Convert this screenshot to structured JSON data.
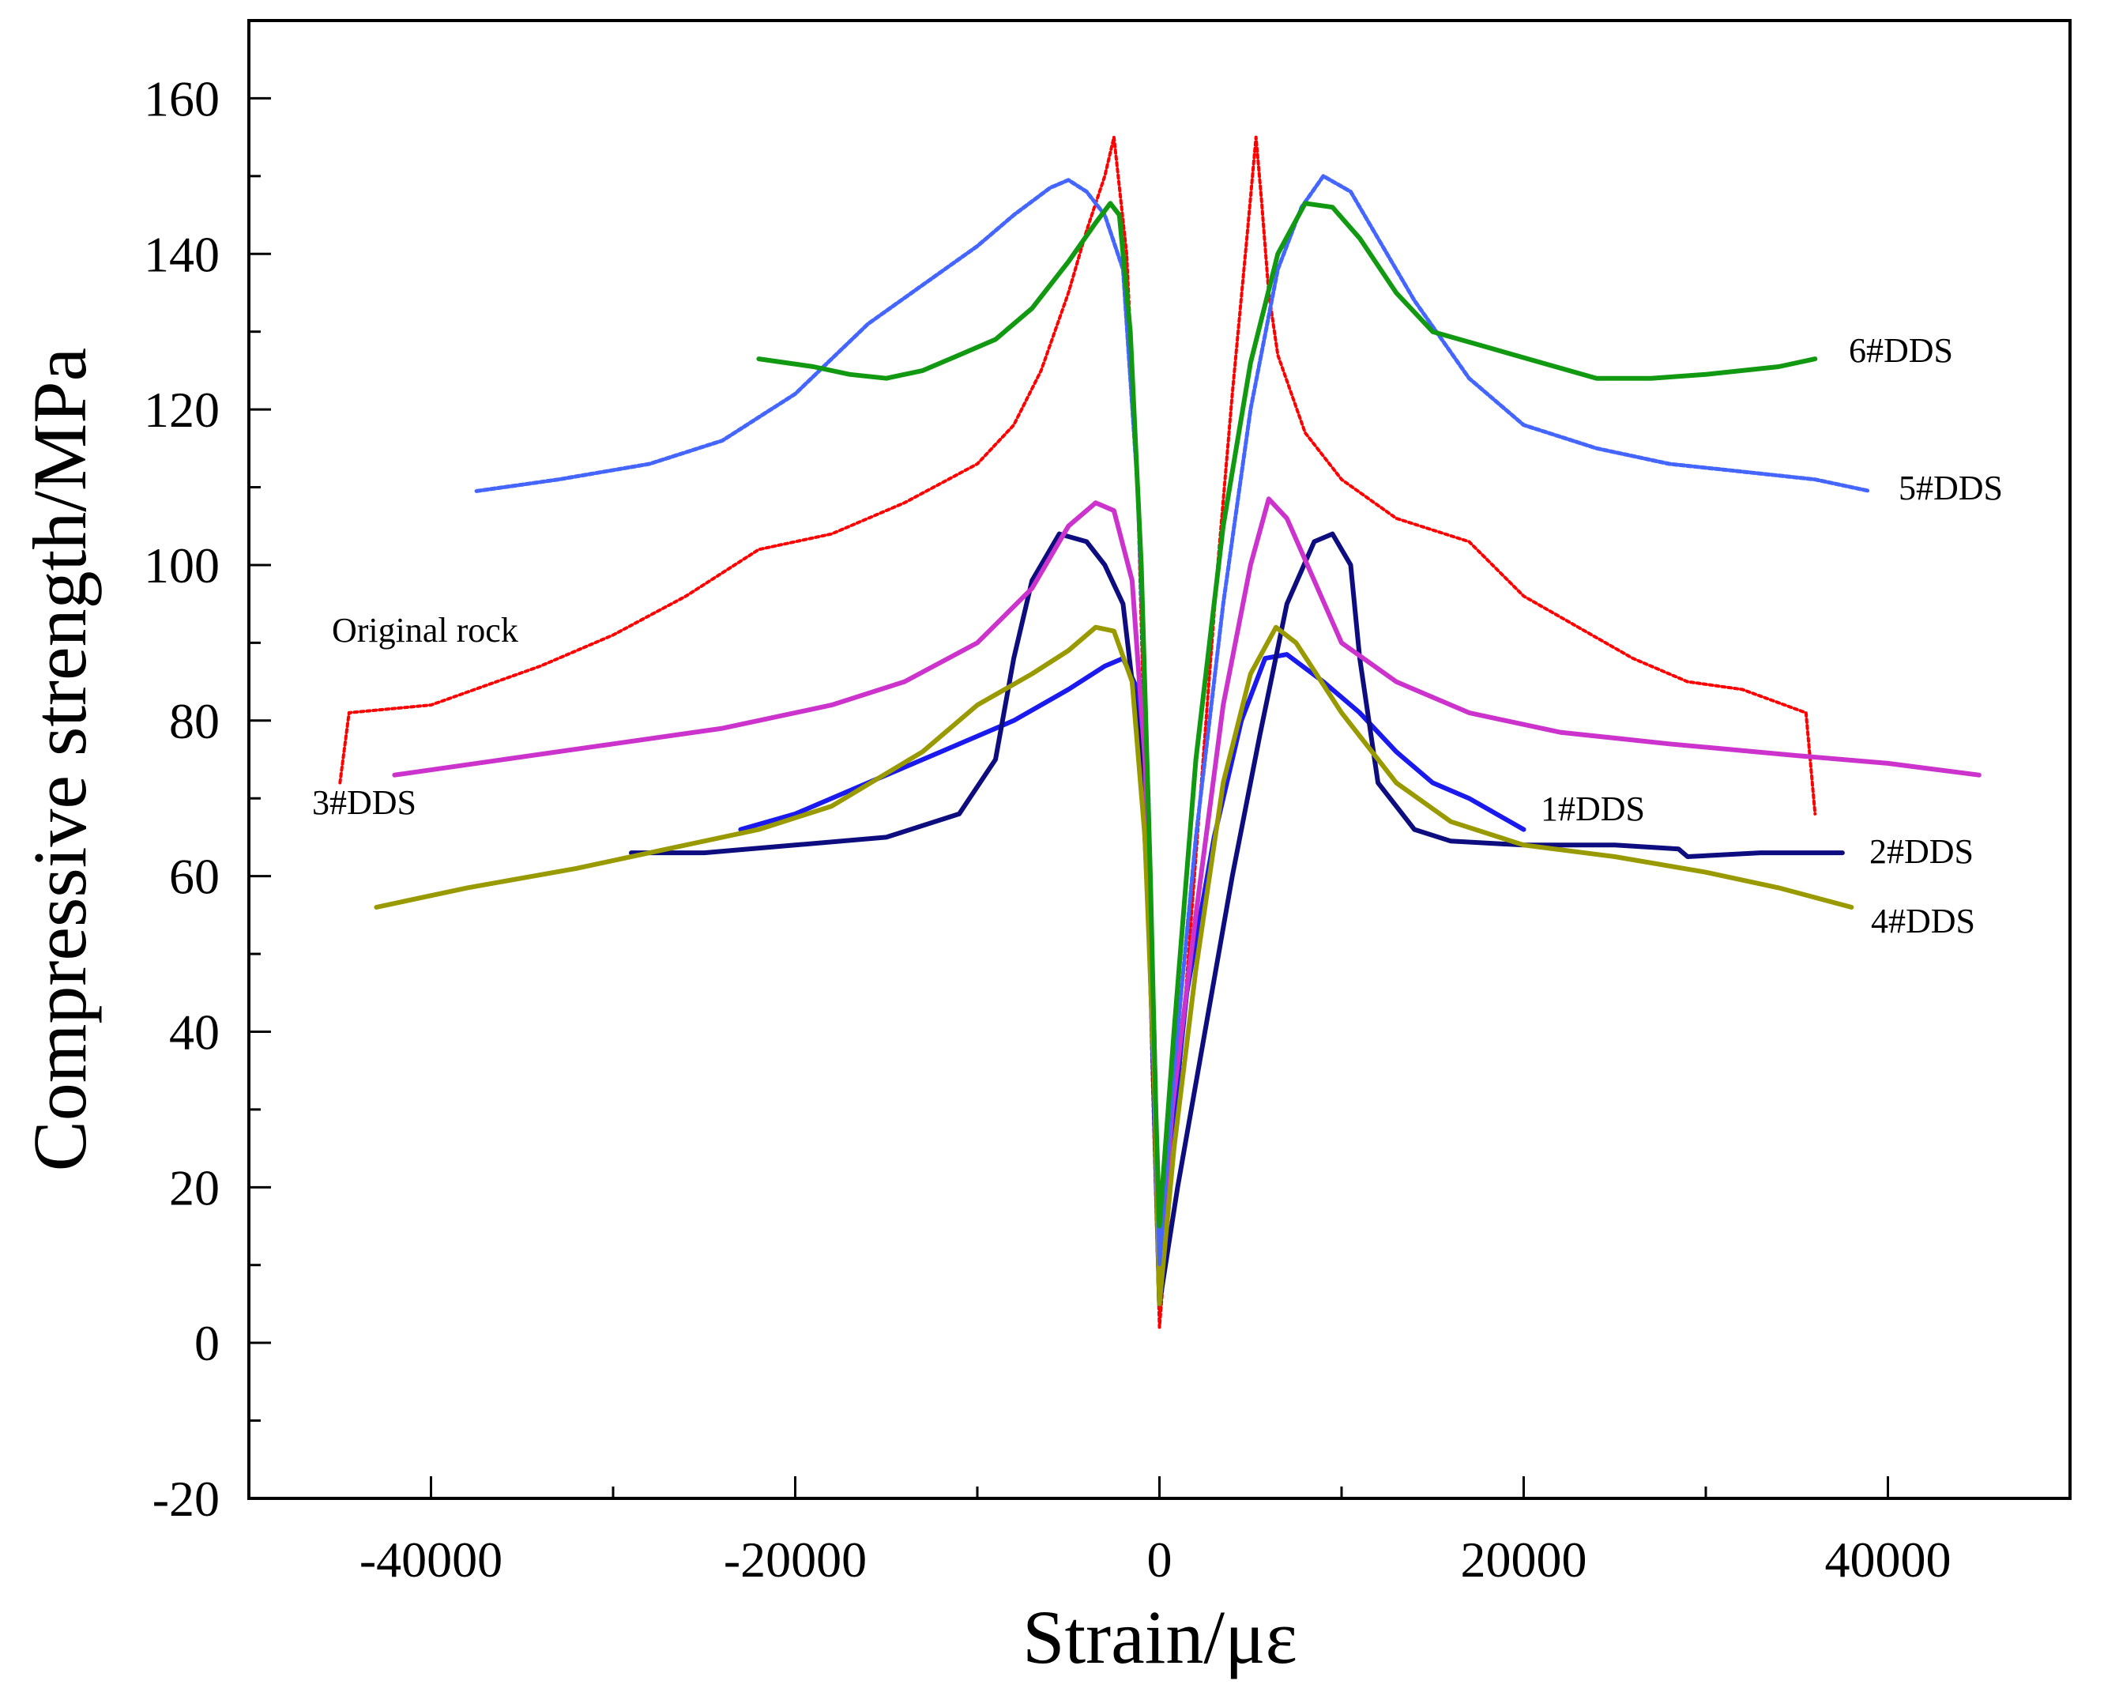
{
  "chart_data": {
    "type": "line",
    "title": "",
    "xlabel": "Strain/με",
    "ylabel": "Compressive strength/MPa",
    "xlim": [
      -50000,
      50000
    ],
    "ylim": [
      -20,
      170
    ],
    "xticks": [
      -40000,
      -20000,
      0,
      20000,
      40000
    ],
    "xtick_labels": [
      "-40000",
      "-20000",
      "0",
      "20000",
      "40000"
    ],
    "yticks": [
      -20,
      0,
      20,
      40,
      60,
      80,
      100,
      120,
      140,
      160
    ],
    "ytick_labels": [
      "-20",
      "0",
      "20",
      "40",
      "60",
      "80",
      "100",
      "120",
      "140",
      "160"
    ],
    "grid": false,
    "series": [
      {
        "name": "Original rock",
        "label": "Original rock",
        "color": "#ff0000",
        "points": [
          [
            -45000,
            72
          ],
          [
            -44500,
            81
          ],
          [
            -40000,
            82
          ],
          [
            -34000,
            87
          ],
          [
            -30000,
            91
          ],
          [
            -26000,
            96
          ],
          [
            -22000,
            102
          ],
          [
            -18000,
            104
          ],
          [
            -14000,
            108
          ],
          [
            -10000,
            113
          ],
          [
            -8000,
            118
          ],
          [
            -6500,
            125
          ],
          [
            -5000,
            135
          ],
          [
            -4000,
            143
          ],
          [
            -3000,
            150
          ],
          [
            -2500,
            155
          ],
          [
            -1800,
            140
          ],
          [
            -1200,
            110
          ],
          [
            -800,
            75
          ],
          [
            -400,
            35
          ],
          [
            0,
            2
          ],
          [
            800,
            25
          ],
          [
            1600,
            50
          ],
          [
            2400,
            75
          ],
          [
            3200,
            100
          ],
          [
            4000,
            122
          ],
          [
            4800,
            142
          ],
          [
            5300,
            155
          ],
          [
            5600,
            147
          ],
          [
            6000,
            135
          ],
          [
            6500,
            127
          ],
          [
            8000,
            117
          ],
          [
            10000,
            111
          ],
          [
            13000,
            106
          ],
          [
            17000,
            103
          ],
          [
            20000,
            96
          ],
          [
            23000,
            92
          ],
          [
            26000,
            88
          ],
          [
            29000,
            85
          ],
          [
            32000,
            84
          ],
          [
            35500,
            81
          ],
          [
            36000,
            68
          ]
        ]
      },
      {
        "name": "1#DDS",
        "label": "1#DDS",
        "color": "#1a1aee",
        "points": [
          [
            -23000,
            66
          ],
          [
            -20000,
            68
          ],
          [
            -16000,
            72
          ],
          [
            -12000,
            76
          ],
          [
            -8000,
            80
          ],
          [
            -5000,
            84
          ],
          [
            -3000,
            87
          ],
          [
            -2000,
            88
          ],
          [
            -1200,
            84
          ],
          [
            -800,
            70
          ],
          [
            -400,
            40
          ],
          [
            0,
            5
          ],
          [
            600,
            25
          ],
          [
            1500,
            45
          ],
          [
            3000,
            65
          ],
          [
            4500,
            80
          ],
          [
            5800,
            88
          ],
          [
            7000,
            88.5
          ],
          [
            9000,
            85
          ],
          [
            11000,
            81
          ],
          [
            13000,
            76
          ],
          [
            15000,
            72
          ],
          [
            17000,
            70
          ],
          [
            20000,
            66
          ]
        ]
      },
      {
        "name": "2#DDS",
        "label": "2#DDS",
        "color": "#0d0d80",
        "points": [
          [
            -29000,
            63
          ],
          [
            -25000,
            63
          ],
          [
            -20000,
            64
          ],
          [
            -15000,
            65
          ],
          [
            -11000,
            68
          ],
          [
            -9000,
            75
          ],
          [
            -8000,
            88
          ],
          [
            -7000,
            98
          ],
          [
            -5500,
            104
          ],
          [
            -4000,
            103
          ],
          [
            -3000,
            100
          ],
          [
            -2000,
            95
          ],
          [
            -1000,
            75
          ],
          [
            -400,
            45
          ],
          [
            0,
            5
          ],
          [
            1000,
            20
          ],
          [
            2500,
            40
          ],
          [
            4000,
            60
          ],
          [
            5500,
            78
          ],
          [
            7000,
            95
          ],
          [
            8500,
            103
          ],
          [
            9500,
            104
          ],
          [
            10500,
            100
          ],
          [
            11000,
            88
          ],
          [
            12000,
            72
          ],
          [
            14000,
            66
          ],
          [
            16000,
            64.5
          ],
          [
            20000,
            64
          ],
          [
            25000,
            64
          ],
          [
            28500,
            63.5
          ],
          [
            29000,
            62.5
          ],
          [
            33000,
            63
          ],
          [
            37500,
            63
          ]
        ]
      },
      {
        "name": "3#DDS",
        "label": "3#DDS",
        "color": "#cc33cc",
        "points": [
          [
            -42000,
            73
          ],
          [
            -36000,
            75
          ],
          [
            -30000,
            77
          ],
          [
            -24000,
            79
          ],
          [
            -18000,
            82
          ],
          [
            -14000,
            85
          ],
          [
            -10000,
            90
          ],
          [
            -7000,
            97
          ],
          [
            -5000,
            105
          ],
          [
            -3500,
            108
          ],
          [
            -2500,
            107
          ],
          [
            -1500,
            98
          ],
          [
            -800,
            75
          ],
          [
            -300,
            40
          ],
          [
            0,
            8
          ],
          [
            700,
            30
          ],
          [
            2000,
            55
          ],
          [
            3500,
            82
          ],
          [
            5000,
            100
          ],
          [
            6000,
            108.5
          ],
          [
            7000,
            106
          ],
          [
            8500,
            98
          ],
          [
            10000,
            90
          ],
          [
            13000,
            85
          ],
          [
            17000,
            81
          ],
          [
            22000,
            78.5
          ],
          [
            28000,
            77
          ],
          [
            35000,
            75.5
          ],
          [
            40000,
            74.5
          ],
          [
            45000,
            73
          ]
        ]
      },
      {
        "name": "4#DDS",
        "label": "4#DDS",
        "color": "#999900",
        "points": [
          [
            -43000,
            56
          ],
          [
            -38000,
            58.5
          ],
          [
            -32000,
            61
          ],
          [
            -28000,
            63
          ],
          [
            -22000,
            66
          ],
          [
            -18000,
            69
          ],
          [
            -13000,
            76
          ],
          [
            -10000,
            82
          ],
          [
            -7000,
            86
          ],
          [
            -5000,
            89
          ],
          [
            -3500,
            92
          ],
          [
            -2500,
            91.5
          ],
          [
            -1500,
            85
          ],
          [
            -800,
            65
          ],
          [
            -300,
            35
          ],
          [
            0,
            5
          ],
          [
            800,
            25
          ],
          [
            2000,
            48
          ],
          [
            3500,
            72
          ],
          [
            5000,
            86
          ],
          [
            6400,
            92
          ],
          [
            7500,
            90
          ],
          [
            10000,
            81
          ],
          [
            13000,
            72
          ],
          [
            16000,
            67
          ],
          [
            20000,
            64
          ],
          [
            25000,
            62.5
          ],
          [
            30000,
            60.5
          ],
          [
            34000,
            58.5
          ],
          [
            38000,
            56
          ]
        ]
      },
      {
        "name": "5#DDS",
        "label": "5#DDS",
        "color": "#4466ff",
        "points": [
          [
            -37500,
            109.5
          ],
          [
            -33000,
            111
          ],
          [
            -28000,
            113
          ],
          [
            -24000,
            116
          ],
          [
            -20000,
            122
          ],
          [
            -16000,
            131
          ],
          [
            -13000,
            136
          ],
          [
            -10000,
            141
          ],
          [
            -8000,
            145
          ],
          [
            -6000,
            148.5
          ],
          [
            -5000,
            149.5
          ],
          [
            -4000,
            148
          ],
          [
            -3000,
            145
          ],
          [
            -2000,
            138
          ],
          [
            -1200,
            110
          ],
          [
            -600,
            70
          ],
          [
            -200,
            30
          ],
          [
            0,
            10
          ],
          [
            800,
            35
          ],
          [
            2000,
            65
          ],
          [
            3500,
            95
          ],
          [
            5000,
            120
          ],
          [
            6500,
            138
          ],
          [
            7800,
            146
          ],
          [
            9000,
            150
          ],
          [
            10500,
            148
          ],
          [
            12000,
            142
          ],
          [
            14000,
            134
          ],
          [
            17000,
            124
          ],
          [
            20000,
            118
          ],
          [
            24000,
            115
          ],
          [
            28000,
            113
          ],
          [
            32000,
            112
          ],
          [
            36000,
            111
          ],
          [
            39000,
            109.5
          ]
        ]
      },
      {
        "name": "6#DDS",
        "label": "6#DDS",
        "color": "#119911",
        "points": [
          [
            -22000,
            126.5
          ],
          [
            -19000,
            125.5
          ],
          [
            -17000,
            124.5
          ],
          [
            -15000,
            124
          ],
          [
            -13000,
            125
          ],
          [
            -11000,
            127
          ],
          [
            -9000,
            129
          ],
          [
            -7000,
            133
          ],
          [
            -5000,
            139
          ],
          [
            -3500,
            144
          ],
          [
            -2700,
            146.5
          ],
          [
            -2200,
            145
          ],
          [
            -1600,
            130
          ],
          [
            -1000,
            100
          ],
          [
            -500,
            60
          ],
          [
            -200,
            30
          ],
          [
            0,
            15
          ],
          [
            800,
            40
          ],
          [
            2000,
            75
          ],
          [
            3500,
            105
          ],
          [
            5000,
            126
          ],
          [
            6500,
            140
          ],
          [
            8000,
            146.5
          ],
          [
            9500,
            146
          ],
          [
            11000,
            142
          ],
          [
            13000,
            135
          ],
          [
            15000,
            130
          ],
          [
            18000,
            128
          ],
          [
            21000,
            126
          ],
          [
            24000,
            124
          ],
          [
            27000,
            124
          ],
          [
            30000,
            124.5
          ],
          [
            34000,
            125.5
          ],
          [
            36000,
            126.5
          ]
        ]
      }
    ]
  }
}
